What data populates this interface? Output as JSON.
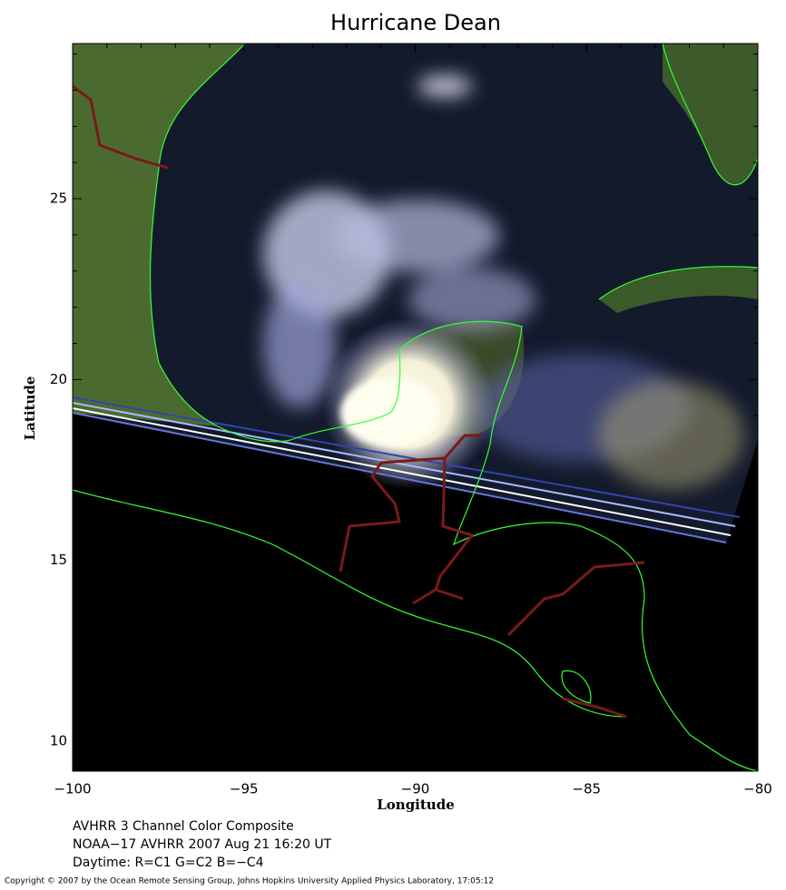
{
  "chart_data": {
    "type": "map",
    "title": "Hurricane Dean",
    "x_label": "Longitude",
    "y_label": "Latitude",
    "xlim": [
      -100,
      -80
    ],
    "ylim": [
      9.17,
      29.29
    ],
    "xticks": [
      {
        "value": -100,
        "label": "−100"
      },
      {
        "value": -95,
        "label": "−95"
      },
      {
        "value": -90,
        "label": "−90"
      },
      {
        "value": -85,
        "label": "−85"
      },
      {
        "value": -80,
        "label": "−80"
      }
    ],
    "yticks": [
      10,
      15,
      20,
      25
    ],
    "xminorticks": [
      -99,
      -98,
      -97,
      -96,
      -94,
      -93,
      -92,
      -91,
      -89,
      -88,
      -87,
      -86,
      -84,
      -83,
      -82,
      -81
    ],
    "yminorticks": [
      11,
      12,
      13,
      14,
      16,
      17,
      18,
      19,
      21,
      22,
      23,
      24,
      26,
      27,
      28,
      29
    ],
    "caption": [
      "AVHRR 3 Channel Color Composite",
      "NOAA−17 AVHRR 2007 Aug 21 16:20 UT",
      "Daytime: R=C1 G=C2 B=−C4"
    ],
    "copyright": "Copyright © 2007 by the Ocean Remote Sensing Group, Johns Hopkins University Applied Physics Laboratory, 17:05:12"
  }
}
